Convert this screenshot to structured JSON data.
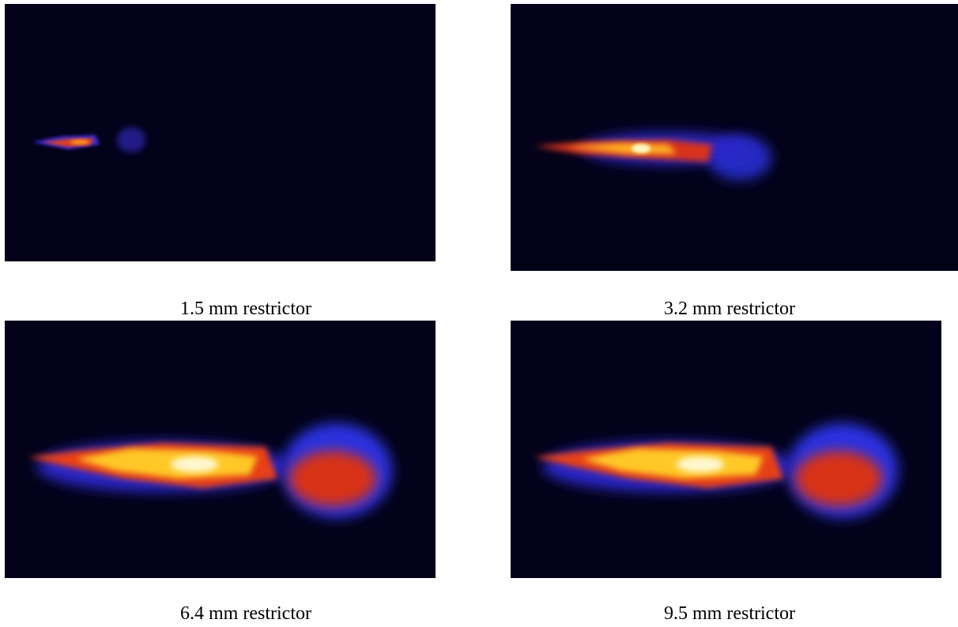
{
  "panels": [
    {
      "caption": "1.5 mm restrictor"
    },
    {
      "caption": "3.2 mm restrictor"
    },
    {
      "caption": "6.4 mm restrictor"
    },
    {
      "caption": "9.5 mm restrictor"
    }
  ]
}
